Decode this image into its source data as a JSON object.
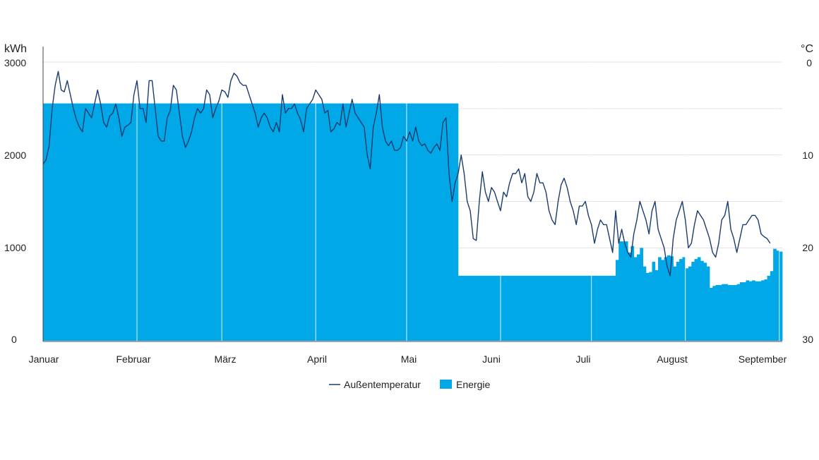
{
  "chart_data": {
    "type": "bar+line",
    "title": "",
    "left_axis": {
      "unit": "kWh",
      "ticks": [
        "3000",
        "2000",
        "1000",
        "0"
      ],
      "range": [
        0,
        3000
      ]
    },
    "right_axis": {
      "unit": "°C",
      "ticks": [
        "0",
        "10",
        "20",
        "30"
      ],
      "range": [
        0,
        30
      ],
      "inverted": true
    },
    "months": [
      "Januar",
      "Februar",
      "März",
      "April",
      "Mai",
      "Juni",
      "Juli",
      "August",
      "September"
    ],
    "grid": true,
    "legend": {
      "position": "bottom-center",
      "items": [
        {
          "name": "Außentemperatur",
          "marker": "line"
        },
        {
          "name": "Energie",
          "marker": "box"
        }
      ]
    },
    "colors": {
      "energy": "#00a8e8",
      "temperature": "#1a3c6e",
      "grid": "#e3e3e3",
      "axis": "#444444"
    },
    "series": [
      {
        "name": "Energie",
        "axis": "left",
        "unit": "kWh",
        "type": "bar",
        "x_unit": "day_of_year",
        "points": [
          [
            1,
            2555
          ],
          [
            137,
            2555
          ],
          [
            138,
            700
          ],
          [
            189,
            700
          ],
          [
            190,
            870
          ],
          [
            191,
            1070
          ],
          [
            192,
            1070
          ],
          [
            193,
            1070
          ],
          [
            194,
            950
          ],
          [
            195,
            1020
          ],
          [
            196,
            900
          ],
          [
            197,
            930
          ],
          [
            198,
            1000
          ],
          [
            199,
            800
          ],
          [
            200,
            730
          ],
          [
            201,
            740
          ],
          [
            202,
            850
          ],
          [
            203,
            760
          ],
          [
            204,
            900
          ],
          [
            205,
            870
          ],
          [
            206,
            900
          ],
          [
            207,
            920
          ],
          [
            208,
            910
          ],
          [
            209,
            800
          ],
          [
            210,
            850
          ],
          [
            211,
            880
          ],
          [
            212,
            900
          ],
          [
            213,
            780
          ],
          [
            214,
            800
          ],
          [
            215,
            850
          ],
          [
            216,
            880
          ],
          [
            217,
            900
          ],
          [
            218,
            860
          ],
          [
            219,
            840
          ],
          [
            220,
            800
          ],
          [
            221,
            570
          ],
          [
            222,
            590
          ],
          [
            223,
            600
          ],
          [
            224,
            600
          ],
          [
            225,
            610
          ],
          [
            226,
            610
          ],
          [
            227,
            600
          ],
          [
            228,
            600
          ],
          [
            229,
            600
          ],
          [
            230,
            610
          ],
          [
            231,
            630
          ],
          [
            232,
            630
          ],
          [
            233,
            650
          ],
          [
            234,
            640
          ],
          [
            235,
            650
          ],
          [
            236,
            640
          ],
          [
            237,
            640
          ],
          [
            238,
            650
          ],
          [
            239,
            660
          ],
          [
            240,
            700
          ],
          [
            241,
            750
          ],
          [
            242,
            990
          ],
          [
            243,
            970
          ],
          [
            244,
            960
          ]
        ]
      },
      {
        "name": "Außentemperatur",
        "axis": "right",
        "unit": "°C",
        "type": "line",
        "x_unit": "day_of_year",
        "points": [
          [
            1,
            11
          ],
          [
            2,
            10.5
          ],
          [
            3,
            9
          ],
          [
            4,
            5
          ],
          [
            5,
            2.5
          ],
          [
            6,
            1
          ],
          [
            7,
            3
          ],
          [
            8,
            3.2
          ],
          [
            9,
            2
          ],
          [
            10,
            3.5
          ],
          [
            11,
            5
          ],
          [
            12,
            6.2
          ],
          [
            13,
            7
          ],
          [
            14,
            7.5
          ],
          [
            15,
            5
          ],
          [
            16,
            5.5
          ],
          [
            17,
            6
          ],
          [
            18,
            4.5
          ],
          [
            19,
            3
          ],
          [
            20,
            4.5
          ],
          [
            21,
            6.5
          ],
          [
            22,
            7
          ],
          [
            23,
            5.8
          ],
          [
            24,
            5.5
          ],
          [
            25,
            4.5
          ],
          [
            26,
            6
          ],
          [
            27,
            8
          ],
          [
            28,
            7
          ],
          [
            29,
            6.8
          ],
          [
            30,
            6.5
          ],
          [
            31,
            3.5
          ],
          [
            32,
            2
          ],
          [
            33,
            5
          ],
          [
            34,
            5
          ],
          [
            35,
            6.5
          ],
          [
            36,
            2
          ],
          [
            37,
            2
          ],
          [
            38,
            5
          ],
          [
            39,
            8
          ],
          [
            40,
            8.5
          ],
          [
            41,
            8.5
          ],
          [
            42,
            6
          ],
          [
            43,
            5.2
          ],
          [
            44,
            2.5
          ],
          [
            45,
            3
          ],
          [
            46,
            5.5
          ],
          [
            47,
            8
          ],
          [
            48,
            9.2
          ],
          [
            49,
            8.5
          ],
          [
            50,
            7.5
          ],
          [
            51,
            6
          ],
          [
            52,
            5
          ],
          [
            53,
            5.5
          ],
          [
            54,
            5
          ],
          [
            55,
            3
          ],
          [
            56,
            3.5
          ],
          [
            57,
            6
          ],
          [
            58,
            5
          ],
          [
            59,
            4.2
          ],
          [
            60,
            3
          ],
          [
            61,
            3.2
          ],
          [
            62,
            3.8
          ],
          [
            63,
            2
          ],
          [
            64,
            1.2
          ],
          [
            65,
            1.5
          ],
          [
            66,
            2.2
          ],
          [
            67,
            2.5
          ],
          [
            68,
            2.5
          ],
          [
            69,
            3.5
          ],
          [
            70,
            4.5
          ],
          [
            71,
            5.5
          ],
          [
            72,
            7
          ],
          [
            73,
            6
          ],
          [
            74,
            5.5
          ],
          [
            75,
            6
          ],
          [
            76,
            7
          ],
          [
            77,
            7.5
          ],
          [
            78,
            6.5
          ],
          [
            79,
            7.5
          ],
          [
            80,
            3.5
          ],
          [
            81,
            5.5
          ],
          [
            82,
            5
          ],
          [
            83,
            5
          ],
          [
            84,
            4.5
          ],
          [
            85,
            5.5
          ],
          [
            86,
            6.2
          ],
          [
            87,
            7.5
          ],
          [
            88,
            5
          ],
          [
            89,
            4.5
          ],
          [
            90,
            4
          ],
          [
            91,
            3
          ],
          [
            92,
            3.5
          ],
          [
            93,
            4
          ],
          [
            94,
            5.5
          ],
          [
            95,
            5.2
          ],
          [
            96,
            7.5
          ],
          [
            97,
            7.2
          ],
          [
            98,
            6.5
          ],
          [
            99,
            6.8
          ],
          [
            100,
            4.5
          ],
          [
            101,
            7
          ],
          [
            102,
            5.5
          ],
          [
            103,
            4
          ],
          [
            104,
            5.5
          ],
          [
            105,
            6
          ],
          [
            106,
            6.5
          ],
          [
            107,
            7
          ],
          [
            108,
            10
          ],
          [
            109,
            11.5
          ],
          [
            110,
            7
          ],
          [
            111,
            5.5
          ],
          [
            112,
            3.5
          ],
          [
            113,
            7
          ],
          [
            114,
            8.5
          ],
          [
            115,
            9
          ],
          [
            116,
            8.5
          ],
          [
            117,
            9.5
          ],
          [
            118,
            9.5
          ],
          [
            119,
            9.2
          ],
          [
            120,
            8
          ],
          [
            121,
            8.5
          ],
          [
            122,
            7.5
          ],
          [
            123,
            8.5
          ],
          [
            124,
            7
          ],
          [
            125,
            8.5
          ],
          [
            126,
            9
          ],
          [
            127,
            8.8
          ],
          [
            128,
            9.5
          ],
          [
            129,
            9.8
          ],
          [
            130,
            9.2
          ],
          [
            131,
            8.8
          ],
          [
            132,
            9.5
          ],
          [
            133,
            6.5
          ],
          [
            134,
            6
          ],
          [
            135,
            12
          ],
          [
            136,
            15
          ],
          [
            137,
            13
          ],
          [
            138,
            12
          ],
          [
            139,
            10
          ],
          [
            140,
            12
          ],
          [
            141,
            15
          ],
          [
            142,
            16
          ],
          [
            143,
            19
          ],
          [
            144,
            19.2
          ],
          [
            145,
            15
          ],
          [
            146,
            11.8
          ],
          [
            147,
            14
          ],
          [
            148,
            15
          ],
          [
            149,
            13.5
          ],
          [
            150,
            14
          ],
          [
            151,
            15
          ],
          [
            152,
            16
          ],
          [
            153,
            14
          ],
          [
            154,
            14.5
          ],
          [
            155,
            13
          ],
          [
            156,
            12
          ],
          [
            157,
            12
          ],
          [
            158,
            11.5
          ],
          [
            159,
            13
          ],
          [
            160,
            12
          ],
          [
            161,
            14.5
          ],
          [
            162,
            15
          ],
          [
            163,
            14
          ],
          [
            164,
            12
          ],
          [
            165,
            13
          ],
          [
            166,
            13
          ],
          [
            167,
            14
          ],
          [
            168,
            16
          ],
          [
            169,
            17
          ],
          [
            170,
            17.5
          ],
          [
            171,
            15
          ],
          [
            172,
            13.2
          ],
          [
            173,
            12.5
          ],
          [
            174,
            13.5
          ],
          [
            175,
            15
          ],
          [
            176,
            16
          ],
          [
            177,
            17.5
          ],
          [
            178,
            15.5
          ],
          [
            179,
            15.5
          ],
          [
            180,
            15
          ],
          [
            181,
            16.5
          ],
          [
            182,
            17.5
          ],
          [
            183,
            19.5
          ],
          [
            184,
            18
          ],
          [
            185,
            17
          ],
          [
            186,
            17.5
          ],
          [
            187,
            17.5
          ],
          [
            188,
            19
          ],
          [
            189,
            20.5
          ],
          [
            190,
            16
          ],
          [
            191,
            19.5
          ],
          [
            192,
            18
          ],
          [
            193,
            19.5
          ],
          [
            194,
            20.5
          ],
          [
            195,
            21
          ],
          [
            196,
            18.5
          ],
          [
            197,
            17
          ],
          [
            198,
            15
          ],
          [
            199,
            16
          ],
          [
            200,
            17
          ],
          [
            201,
            18.5
          ],
          [
            202,
            16
          ],
          [
            203,
            15
          ],
          [
            204,
            18
          ],
          [
            205,
            19
          ],
          [
            206,
            20
          ],
          [
            207,
            22
          ],
          [
            208,
            23
          ],
          [
            209,
            19
          ],
          [
            210,
            17
          ],
          [
            211,
            16
          ],
          [
            212,
            15
          ],
          [
            213,
            17
          ],
          [
            214,
            20
          ],
          [
            215,
            19.5
          ],
          [
            216,
            17.5
          ],
          [
            217,
            16
          ],
          [
            218,
            16.5
          ],
          [
            219,
            17
          ],
          [
            220,
            18
          ],
          [
            221,
            19
          ],
          [
            222,
            20.5
          ],
          [
            223,
            21
          ],
          [
            224,
            19.5
          ],
          [
            225,
            17
          ],
          [
            226,
            16.5
          ],
          [
            227,
            15
          ],
          [
            228,
            18
          ],
          [
            229,
            19
          ],
          [
            230,
            20.5
          ],
          [
            231,
            19
          ],
          [
            232,
            17.5
          ],
          [
            233,
            17.5
          ],
          [
            234,
            17
          ],
          [
            235,
            16.5
          ],
          [
            236,
            16.5
          ],
          [
            237,
            17
          ],
          [
            238,
            18.5
          ],
          [
            239,
            18.8
          ],
          [
            240,
            19
          ],
          [
            241,
            19.5
          ]
        ]
      }
    ]
  }
}
